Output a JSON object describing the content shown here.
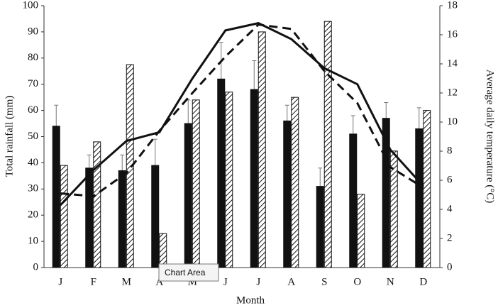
{
  "chart_data": {
    "type": "bar-line",
    "categories": [
      "J",
      "F",
      "M",
      "A",
      "M",
      "J",
      "J",
      "A",
      "S",
      "O",
      "N",
      "D"
    ],
    "xlabel": "Month",
    "ylabel": "Total rainfall (mm)",
    "y2label": "Average daily temperature (°C)",
    "ylim": [
      0,
      100
    ],
    "yticks": [
      0,
      10,
      20,
      30,
      40,
      50,
      60,
      70,
      80,
      90,
      100
    ],
    "y2lim": [
      0,
      18
    ],
    "y2ticks": [
      0,
      2,
      4,
      6,
      8,
      10,
      12,
      14,
      16,
      18
    ],
    "series": [
      {
        "kind": "bar",
        "color": "#111111",
        "pattern": "solid",
        "values": [
          54,
          38,
          37,
          39,
          55,
          72,
          68,
          56,
          31,
          51,
          57,
          53
        ],
        "errors": [
          8,
          5,
          6,
          10,
          9,
          14,
          11,
          6,
          7,
          7,
          6,
          8
        ]
      },
      {
        "kind": "bar",
        "color": "#111111",
        "pattern": "hatch",
        "values": [
          39,
          48,
          77.5,
          13,
          64,
          67,
          90,
          65,
          94,
          28,
          44.5,
          60
        ]
      },
      {
        "kind": "line",
        "axis": "y2",
        "color": "#111111",
        "dash": false,
        "values": [
          4.3,
          6.7,
          8.7,
          9.3,
          13.0,
          16.3,
          16.8,
          15.7,
          13.7,
          12.6,
          8.1,
          5.6
        ]
      },
      {
        "kind": "line",
        "axis": "y2",
        "color": "#111111",
        "dash": true,
        "values": [
          5.1,
          4.9,
          6.5,
          9.4,
          12.0,
          14.5,
          16.7,
          16.4,
          13.5,
          11.3,
          6.9,
          5.5
        ]
      }
    ],
    "tooltip": "Chart Area"
  }
}
